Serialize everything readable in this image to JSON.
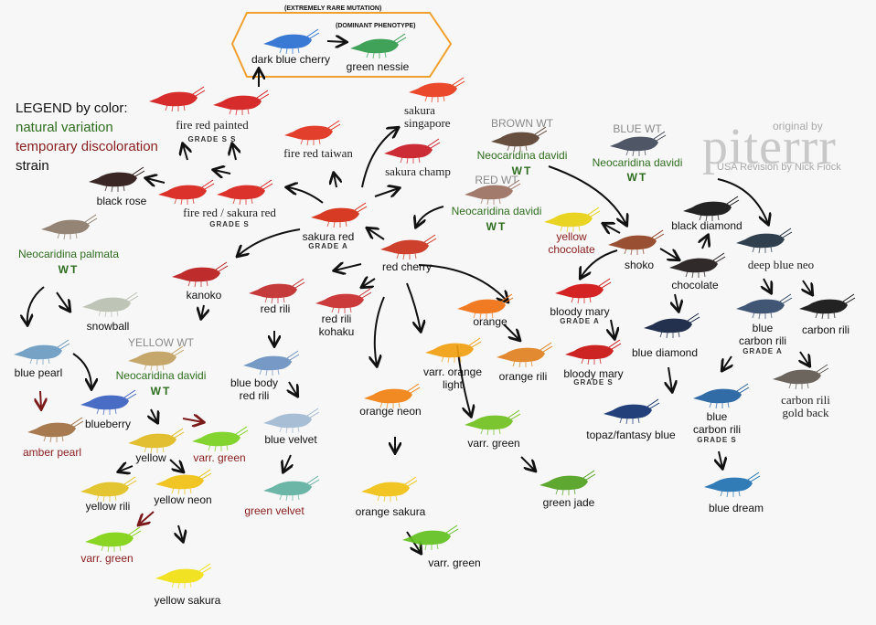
{
  "legend": {
    "title": "LEGEND by color:",
    "natural": "natural variation",
    "temporary": "temporary discoloration",
    "strain": "strain",
    "colors": {
      "natural": "#2e6e1e",
      "temporary": "#8a2020",
      "strain": "#111111"
    }
  },
  "notes": {
    "rare": "(EXTREMELY RARE MUTATION)",
    "dominant": "(DOMINANT PHENOTYPE)",
    "box_color": "#f0a030"
  },
  "watermark": {
    "original_by": "original by",
    "logo": "piterrr",
    "revision": "USA Revision by Nick Fiock"
  },
  "nodes": [
    {
      "label": "dark blue cherry",
      "kind": "strain",
      "color": "#2a6fd0"
    },
    {
      "label": "green nessie",
      "kind": "strain",
      "color": "#2f9a4a"
    },
    {
      "label": "fire red painted",
      "sub": "GRADE S S",
      "kind": "serif",
      "color": "#d41a1a"
    },
    {
      "label": "fire red taiwan",
      "kind": "serif",
      "color": "#e0301a"
    },
    {
      "label": "sakura singapore",
      "kind": "serif",
      "color": "#e83a1a"
    },
    {
      "label": "sakura champ",
      "kind": "serif",
      "color": "#c81a25"
    },
    {
      "label": "black rose",
      "kind": "strain",
      "color": "#2a1414"
    },
    {
      "label": "fire red / sakura red",
      "sub": "GRADE S",
      "kind": "serif",
      "color": "#d8221a"
    },
    {
      "label": "sakura red",
      "sub": "GRADE A",
      "kind": "strain",
      "color": "#d42a10"
    },
    {
      "label": "Neocaridina palmata",
      "wt": "WT",
      "kind": "natural",
      "color": "#8a7a6a"
    },
    {
      "label": "red cherry",
      "kind": "strain",
      "color": "#c8301a"
    },
    {
      "label": "kanoko",
      "kind": "strain",
      "color": "#b81a1a"
    },
    {
      "label": "red rili",
      "kind": "strain",
      "color": "#c02a2a"
    },
    {
      "label": "red rili",
      "label2": "kohaku",
      "kind": "strain",
      "color": "#c82a2a"
    },
    {
      "label": "snowball",
      "kind": "strain",
      "color": "#b8c0b0"
    },
    {
      "label": "blue pearl",
      "kind": "strain",
      "color": "#6a9ac0"
    },
    {
      "header": "YELLOW WT",
      "label": "Neocaridina davidi",
      "wt": "WT",
      "kind": "natural",
      "color": "#c0a060"
    },
    {
      "label": "blue body",
      "label2": "red rili",
      "kind": "strain",
      "color": "#6a90c0"
    },
    {
      "label": "blueberry",
      "kind": "strain",
      "color": "#3a60c0"
    },
    {
      "label": "amber pearl",
      "kind": "temporary",
      "color": "#a07040"
    },
    {
      "label": "yellow",
      "kind": "strain",
      "color": "#e0b820"
    },
    {
      "label": "varr. green",
      "kind": "temporary",
      "color": "#7ad020"
    },
    {
      "label": "blue velvet",
      "kind": "strain",
      "color": "#a0b8d0"
    },
    {
      "label": "yellow rili",
      "kind": "strain",
      "color": "#e0c020"
    },
    {
      "label": "yellow neon",
      "kind": "strain",
      "color": "#f0c010"
    },
    {
      "label": "green velvet",
      "kind": "temporary",
      "color": "#60b0a0"
    },
    {
      "label": "varr. green",
      "kind": "temporary",
      "color": "#80d010"
    },
    {
      "label": "yellow sakura",
      "kind": "strain",
      "color": "#f0e010"
    },
    {
      "label": "orange neon",
      "kind": "strain",
      "color": "#f08010"
    },
    {
      "label": "orange sakura",
      "kind": "strain",
      "color": "#f0c010"
    },
    {
      "label": "varr. green",
      "kind": "strain",
      "color": "#60c020"
    },
    {
      "label": "orange",
      "kind": "strain",
      "color": "#f07010"
    },
    {
      "label": "varr. orange",
      "label2": "light",
      "kind": "strain",
      "color": "#f0a010"
    },
    {
      "label": "orange rili",
      "kind": "strain",
      "color": "#e08020"
    },
    {
      "label": "varr. green",
      "kind": "strain",
      "color": "#70c020"
    },
    {
      "label": "green jade",
      "kind": "strain",
      "color": "#50a020"
    },
    {
      "header": "BROWN WT",
      "label": "Neocaridina davidi",
      "wt": "WT",
      "kind": "natural",
      "color": "#5a4030"
    },
    {
      "header": "RED WT",
      "label": "Neocaridina davidi",
      "wt": "WT",
      "kind": "natural",
      "color": "#9a7060"
    },
    {
      "header": "BLUE WT",
      "label": "Neocaridina davidi",
      "wt": "WT",
      "kind": "natural",
      "color": "#404858"
    },
    {
      "label": "yellow",
      "label2": "chocolate",
      "kind": "temporary",
      "color": "#e8d010"
    },
    {
      "label": "shoko",
      "kind": "strain",
      "color": "#904020"
    },
    {
      "label": "black diamond",
      "kind": "strain",
      "color": "#101010"
    },
    {
      "label": "chocolate",
      "kind": "strain",
      "color": "#201818"
    },
    {
      "label": "deep blue neo",
      "kind": "serif",
      "color": "#203040"
    },
    {
      "label": "bloody mary",
      "sub": "GRADE A",
      "kind": "strain",
      "color": "#d01010"
    },
    {
      "label": "bloody mary",
      "sub": "GRADE S",
      "kind": "strain",
      "color": "#c81010"
    },
    {
      "label": "blue diamond",
      "kind": "strain",
      "color": "#102040"
    },
    {
      "label": "blue",
      "label2": "carbon rili",
      "sub": "GRADE A",
      "kind": "strain",
      "color": "#304868"
    },
    {
      "label": "carbon rili",
      "kind": "strain",
      "color": "#101010"
    },
    {
      "label": "carbon rili",
      "label2": "gold back",
      "kind": "serif",
      "color": "#605850"
    },
    {
      "label": "topaz/fantasy blue",
      "kind": "strain",
      "color": "#103070"
    },
    {
      "label": "blue",
      "label2": "carbon rili",
      "sub": "GRADE S",
      "kind": "strain",
      "color": "#2060a0"
    },
    {
      "label": "blue dream",
      "kind": "strain",
      "color": "#2070b0"
    }
  ]
}
